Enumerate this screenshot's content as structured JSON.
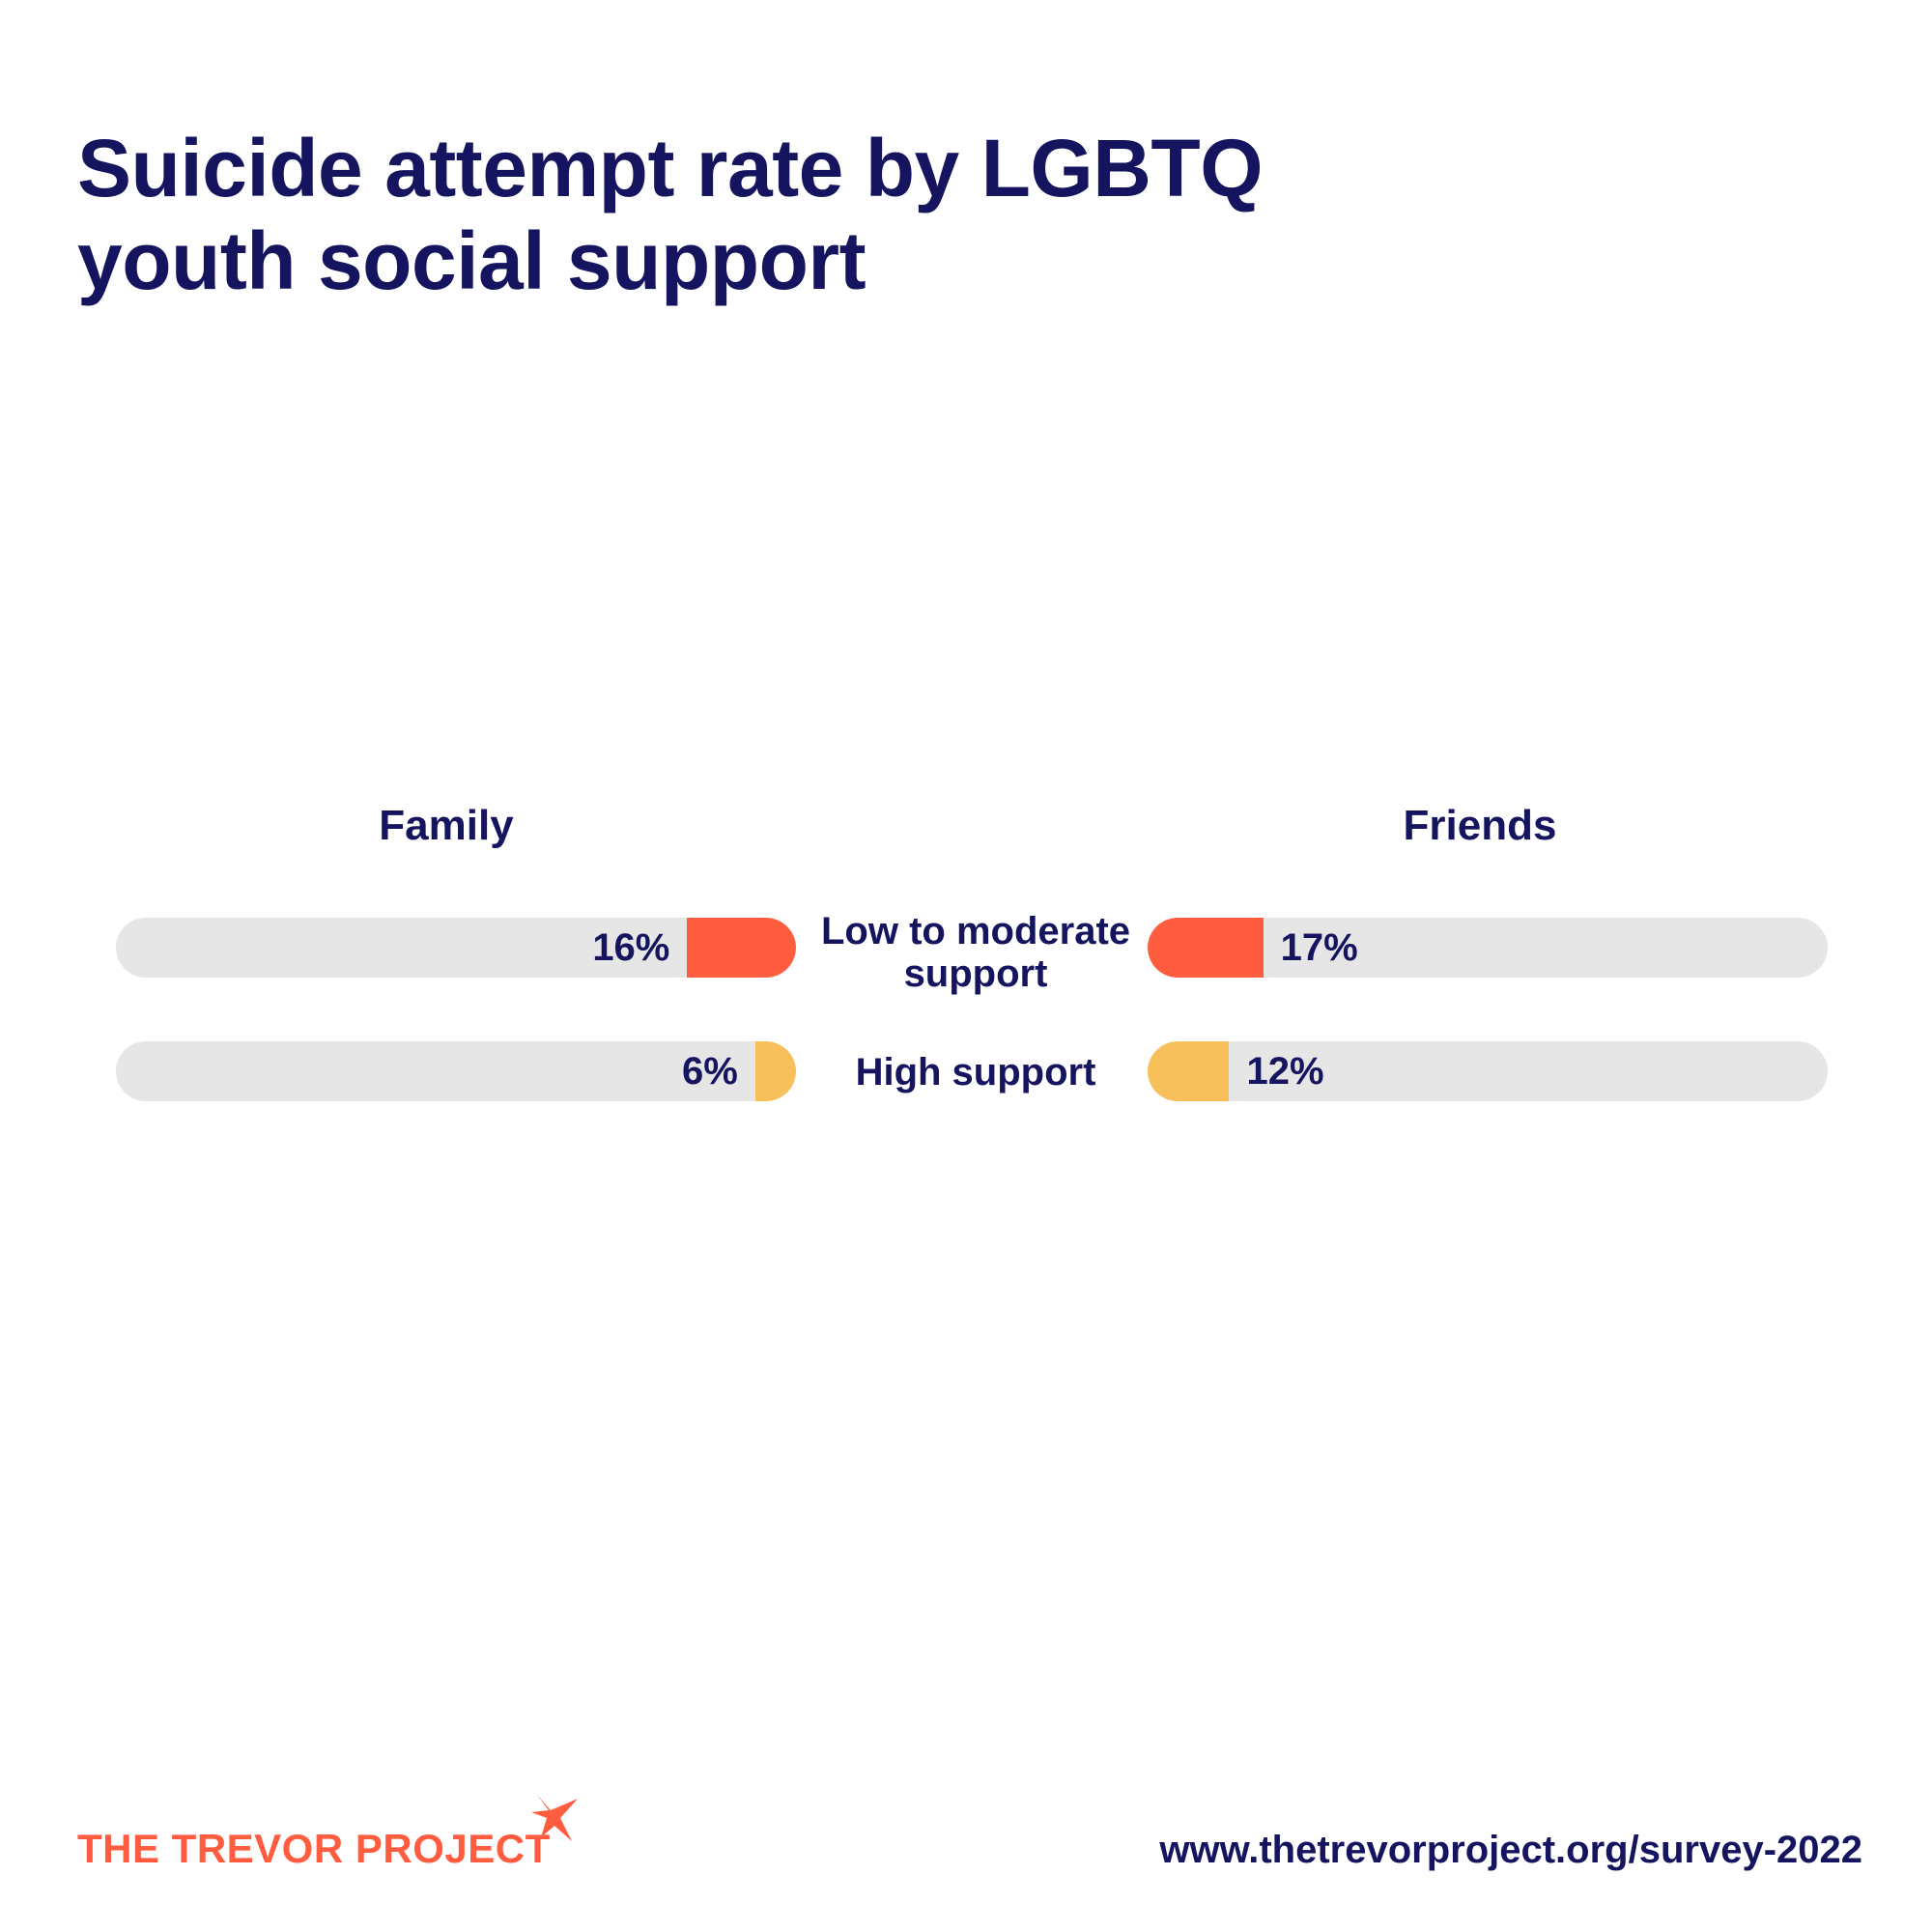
{
  "title_lines": [
    "Suicide attempt rate by LGBTQ",
    "youth social support"
  ],
  "chart_data": {
    "type": "bar",
    "orientation": "horizontal-butterfly",
    "categories": [
      "Low to moderate support",
      "High support"
    ],
    "category_label_lines": [
      [
        "Low to moderate",
        "support"
      ],
      [
        "High support"
      ]
    ],
    "series": [
      {
        "name": "Family",
        "values": [
          16,
          6
        ],
        "value_labels": [
          "16%",
          "6%"
        ],
        "direction": "right-to-left"
      },
      {
        "name": "Friends",
        "values": [
          17,
          12
        ],
        "value_labels": [
          "17%",
          "12%"
        ],
        "direction": "left-to-right"
      }
    ],
    "xlim": [
      0,
      100
    ],
    "unit": "%",
    "colors": {
      "Low to moderate support": "#ff5c40",
      "High support": "#f8c05a",
      "track": "#e6e6e6"
    }
  },
  "footer": {
    "logo_text": "THE TREVOR PROJECT",
    "url": "www.thetrevorproject.org/survey-2022"
  },
  "colors": {
    "navy": "#14145f",
    "brand_orange": "#ff5c40"
  }
}
